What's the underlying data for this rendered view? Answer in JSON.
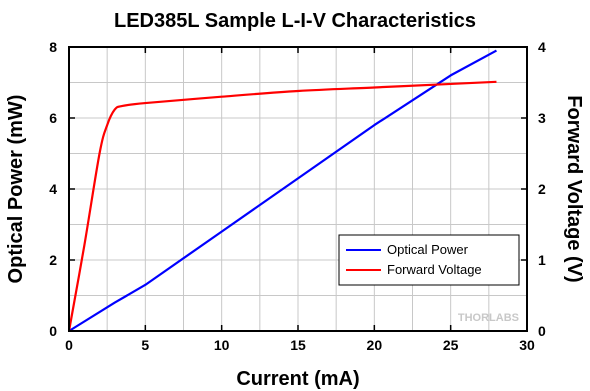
{
  "chart_data": {
    "type": "line",
    "title": "LED385L Sample L-I-V Characteristics",
    "xlabel": "Current (mA)",
    "ylabel": "Optical Power (mW)",
    "y2label": "Forward Voltage (V)",
    "xlim": [
      0,
      30
    ],
    "ylim": [
      0,
      8
    ],
    "y2lim": [
      0,
      4
    ],
    "xticks": [
      0,
      5,
      10,
      15,
      20,
      25,
      30
    ],
    "yticks": [
      0,
      2,
      4,
      6,
      8
    ],
    "y2ticks": [
      0,
      1,
      2,
      3,
      4
    ],
    "grid": true,
    "legend_position": "bottom-right",
    "series": [
      {
        "name": "Optical Power",
        "axis": "left",
        "color": "#0000ff",
        "x": [
          0,
          3,
          5,
          10,
          15,
          20,
          25,
          28
        ],
        "y": [
          0,
          0.8,
          1.3,
          2.8,
          4.3,
          5.8,
          7.2,
          7.9
        ]
      },
      {
        "name": "Forward Voltage",
        "axis": "right",
        "color": "#ff0000",
        "x": [
          0,
          1,
          2,
          2.5,
          3,
          3.5,
          5,
          10,
          15,
          20,
          25,
          28
        ],
        "y": [
          0,
          1.2,
          2.5,
          2.9,
          3.12,
          3.17,
          3.21,
          3.3,
          3.38,
          3.43,
          3.48,
          3.51
        ]
      }
    ]
  },
  "watermark": {
    "text": "THORLABS"
  }
}
